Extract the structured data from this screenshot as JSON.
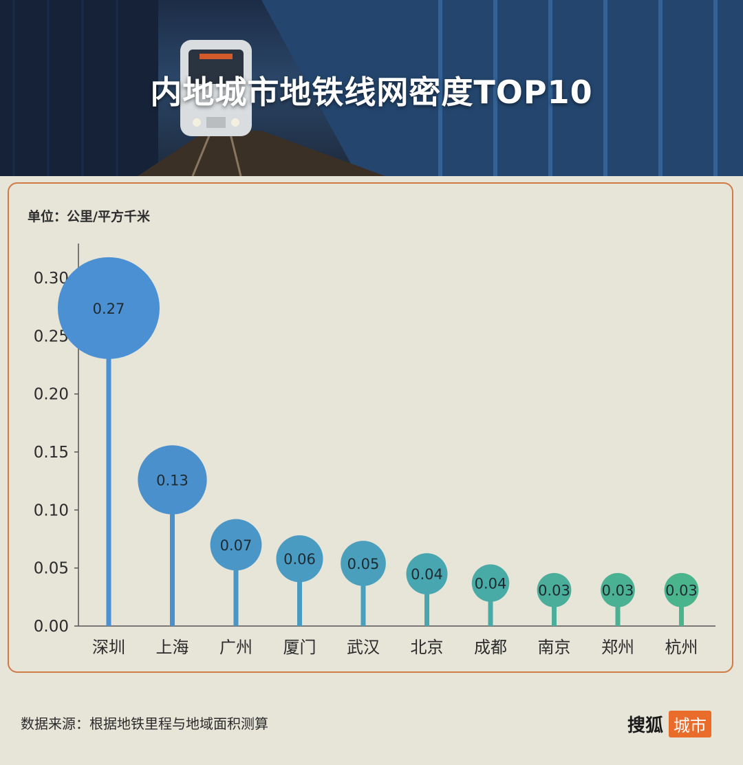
{
  "title": "内地城市地铁线网密度TOP10",
  "unit_label": "单位：公里/平方千米",
  "source": "数据来源：根据地铁里程与地域面积测算",
  "brand": {
    "name": "搜狐",
    "tag": "城市"
  },
  "colors": {
    "frame": "#d07a45",
    "brand_tag": "#ea6c2b",
    "background": "#e7e4d8"
  },
  "chart_data": {
    "type": "lollipop-bubble",
    "title": "内地城市地铁线网密度TOP10",
    "ylabel": "单位：公里/平方千米",
    "ylim": [
      0,
      0.3
    ],
    "yticks": [
      "0.00",
      "0.05",
      "0.10",
      "0.15",
      "0.20",
      "0.25",
      "0.30"
    ],
    "categories": [
      "深圳",
      "上海",
      "广州",
      "厦门",
      "武汉",
      "北京",
      "成都",
      "南京",
      "郑州",
      "杭州"
    ],
    "values": [
      0.274,
      0.126,
      0.07,
      0.058,
      0.054,
      0.045,
      0.037,
      0.031,
      0.031,
      0.031
    ],
    "labels": [
      "0.27",
      "0.13",
      "0.07",
      "0.06",
      "0.05",
      "0.04",
      "0.04",
      "0.03",
      "0.03",
      "0.03"
    ],
    "colors": [
      "#4a90d2",
      "#4a90cc",
      "#4a96c6",
      "#4a9bc2",
      "#4aa0bc",
      "#48a6b0",
      "#48aba6",
      "#4aae9a",
      "#4ab292",
      "#4ab58c"
    ]
  }
}
